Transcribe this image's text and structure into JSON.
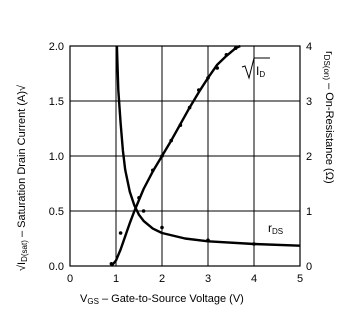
{
  "chart_data": [
    {
      "type": "line",
      "title": "",
      "xlabel": "V",
      "xlabel_sub": "GS",
      "xlabel_rest": " – Gate-to-Source Voltage (V)",
      "xlim": [
        0,
        5
      ],
      "ylim": [
        0,
        2.0
      ],
      "x_ticks": [
        "0",
        "1",
        "2",
        "3",
        "4",
        "5"
      ],
      "y_ticks": [
        "0.0",
        "0.5",
        "1.0",
        "1.5",
        "2.0"
      ],
      "grid": true,
      "series": [
        {
          "name": "√ID",
          "kind": "curve",
          "x": [
            0.9,
            1.0,
            1.1,
            1.2,
            1.3,
            1.4,
            1.5,
            1.6,
            1.8,
            2.0,
            2.2,
            2.4,
            2.6,
            2.8,
            3.0,
            3.2,
            3.4,
            3.6,
            3.7
          ],
          "y": [
            0.0,
            0.05,
            0.15,
            0.27,
            0.39,
            0.5,
            0.6,
            0.7,
            0.86,
            1.0,
            1.14,
            1.29,
            1.44,
            1.58,
            1.71,
            1.83,
            1.91,
            1.98,
            2.0
          ]
        },
        {
          "name": "√ID measured",
          "kind": "dots",
          "x": [
            0.9,
            1.1,
            1.5,
            1.8,
            2.0,
            2.2,
            2.4,
            2.6,
            2.8,
            3.0,
            3.2,
            3.4,
            3.6
          ],
          "y": [
            0.02,
            0.3,
            0.62,
            0.87,
            1.0,
            1.14,
            1.28,
            1.44,
            1.6,
            1.71,
            1.8,
            1.92,
            1.98
          ]
        }
      ],
      "annotation_id": "√ID"
    },
    {
      "type": "line",
      "title": "",
      "ylabel": "rDS(on) – On-Resistance (Ω)",
      "ylabel_parts": {
        "r": "r",
        "sub": "DS(on)",
        "rest": " – On-Resistance (Ω)"
      },
      "ylim": [
        0,
        4
      ],
      "y_ticks": [
        "0",
        "1",
        "2",
        "3",
        "4"
      ],
      "series": [
        {
          "name": "rDS",
          "kind": "curve",
          "x": [
            1.02,
            1.05,
            1.1,
            1.15,
            1.2,
            1.3,
            1.4,
            1.5,
            1.6,
            1.8,
            2.0,
            2.5,
            3.0,
            4.0,
            5.0
          ],
          "y": [
            4.0,
            3.2,
            2.6,
            2.1,
            1.75,
            1.35,
            1.1,
            0.93,
            0.82,
            0.68,
            0.6,
            0.5,
            0.45,
            0.4,
            0.37
          ]
        },
        {
          "name": "rDS measured",
          "kind": "dots",
          "x": [
            1.6,
            2.0,
            3.0,
            4.0
          ],
          "y": [
            1.0,
            0.7,
            0.47,
            0.4
          ]
        }
      ],
      "annotation_r": "r",
      "annotation_sub": "DS"
    }
  ],
  "left_axis_label": {
    "sqrt": "√",
    "I": "I",
    "sub": "D(sat)",
    "rest": " – Saturation Drain Current (A)",
    "tail": "√"
  },
  "colors": {
    "line": "#000000",
    "grid": "#000000",
    "background": "#ffffff"
  }
}
